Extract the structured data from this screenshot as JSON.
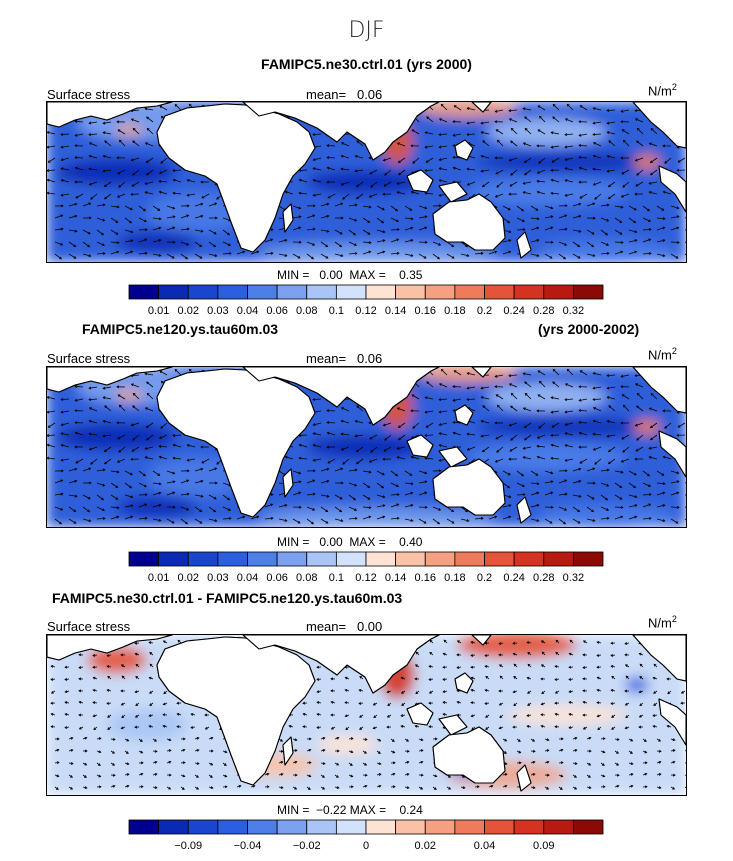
{
  "season": "DJF",
  "panels": [
    {
      "title_left": "FAMIPC5.ne30.ctrl.01 (yrs 2000)",
      "title_right": "",
      "field_label": "Surface stress",
      "mean_label": "mean=",
      "mean_value": "0.06",
      "units": "N/m",
      "units_sup": "2",
      "min_label": "MIN =",
      "min_value": "0.00",
      "max_label": "MAX =",
      "max_value": "0.35",
      "colorbar": {
        "colors": [
          "#00008f",
          "#0a2ab4",
          "#1a46cf",
          "#2c5ee0",
          "#4e7ee8",
          "#7ca2ef",
          "#a9c4f5",
          "#d2e2fa",
          "#fde3d4",
          "#f9c2a6",
          "#f4a081",
          "#ee7c5c",
          "#e4543a",
          "#d43321",
          "#b81a10",
          "#8c0a05"
        ],
        "ticks": [
          "0.01",
          "0.02",
          "0.03",
          "0.04",
          "0.06",
          "0.08",
          "0.1",
          "0.12",
          "0.14",
          "0.16",
          "0.18",
          "0.2",
          "0.24",
          "0.28",
          "0.32"
        ]
      }
    },
    {
      "title_left": "FAMIPC5.ne120.ys.tau60m.03",
      "title_right": "(yrs 2000-2002)",
      "field_label": "Surface stress",
      "mean_label": "mean=",
      "mean_value": "0.06",
      "units": "N/m",
      "units_sup": "2",
      "min_label": "MIN =",
      "min_value": "0.00",
      "max_label": "MAX =",
      "max_value": "0.40",
      "colorbar": {
        "colors": [
          "#00008f",
          "#0a2ab4",
          "#1a46cf",
          "#2c5ee0",
          "#4e7ee8",
          "#7ca2ef",
          "#a9c4f5",
          "#d2e2fa",
          "#fde3d4",
          "#f9c2a6",
          "#f4a081",
          "#ee7c5c",
          "#e4543a",
          "#d43321",
          "#b81a10",
          "#8c0a05"
        ],
        "ticks": [
          "0.01",
          "0.02",
          "0.03",
          "0.04",
          "0.06",
          "0.08",
          "0.1",
          "0.12",
          "0.14",
          "0.16",
          "0.18",
          "0.2",
          "0.24",
          "0.28",
          "0.32"
        ]
      }
    },
    {
      "title_left": "FAMIPC5.ne30.ctrl.01 - FAMIPC5.ne120.ys.tau60m.03",
      "title_right": "",
      "field_label": "Surface stress",
      "mean_label": "mean=",
      "mean_value": "0.00",
      "units": "N/m",
      "units_sup": "2",
      "min_label": "MIN =",
      "min_value": "−0.22",
      "max_label": "MAX =",
      "max_value": "0.24",
      "colorbar": {
        "colors": [
          "#00008f",
          "#0a2ab4",
          "#1a46cf",
          "#2c5ee0",
          "#4e7ee8",
          "#7ca2ef",
          "#a9c4f5",
          "#d2e2fa",
          "#fde3d4",
          "#f9c2a6",
          "#f4a081",
          "#ee7c5c",
          "#e4543a",
          "#d43321",
          "#b81a10",
          "#8c0a05"
        ],
        "ticks": [
          "",
          "−0.09",
          "",
          "−0.04",
          "",
          "−0.02",
          "",
          "0",
          "",
          "0.02",
          "",
          "0.04",
          "",
          "0.09",
          ""
        ]
      }
    }
  ],
  "chart_data": [
    {
      "type": "heatmap",
      "title": "FAMIPC5.ne30.ctrl.01 (yrs 2000)",
      "season": "DJF",
      "variable": "Surface stress",
      "units": "N/m2",
      "mean": 0.06,
      "min": 0.0,
      "max": 0.35,
      "levels": [
        0.01,
        0.02,
        0.03,
        0.04,
        0.06,
        0.08,
        0.1,
        0.12,
        0.14,
        0.16,
        0.18,
        0.2,
        0.24,
        0.28,
        0.32
      ]
    },
    {
      "type": "heatmap",
      "title": "FAMIPC5.ne120.ys.tau60m.03 (yrs 2000-2002)",
      "season": "DJF",
      "variable": "Surface stress",
      "units": "N/m2",
      "mean": 0.06,
      "min": 0.0,
      "max": 0.4,
      "levels": [
        0.01,
        0.02,
        0.03,
        0.04,
        0.06,
        0.08,
        0.1,
        0.12,
        0.14,
        0.16,
        0.18,
        0.2,
        0.24,
        0.28,
        0.32
      ]
    },
    {
      "type": "heatmap",
      "title": "FAMIPC5.ne30.ctrl.01 - FAMIPC5.ne120.ys.tau60m.03",
      "season": "DJF",
      "variable": "Surface stress",
      "units": "N/m2",
      "mean": 0.0,
      "min": -0.22,
      "max": 0.24,
      "levels": [
        -0.09,
        -0.04,
        -0.02,
        0,
        0.02,
        0.04,
        0.09
      ]
    }
  ]
}
